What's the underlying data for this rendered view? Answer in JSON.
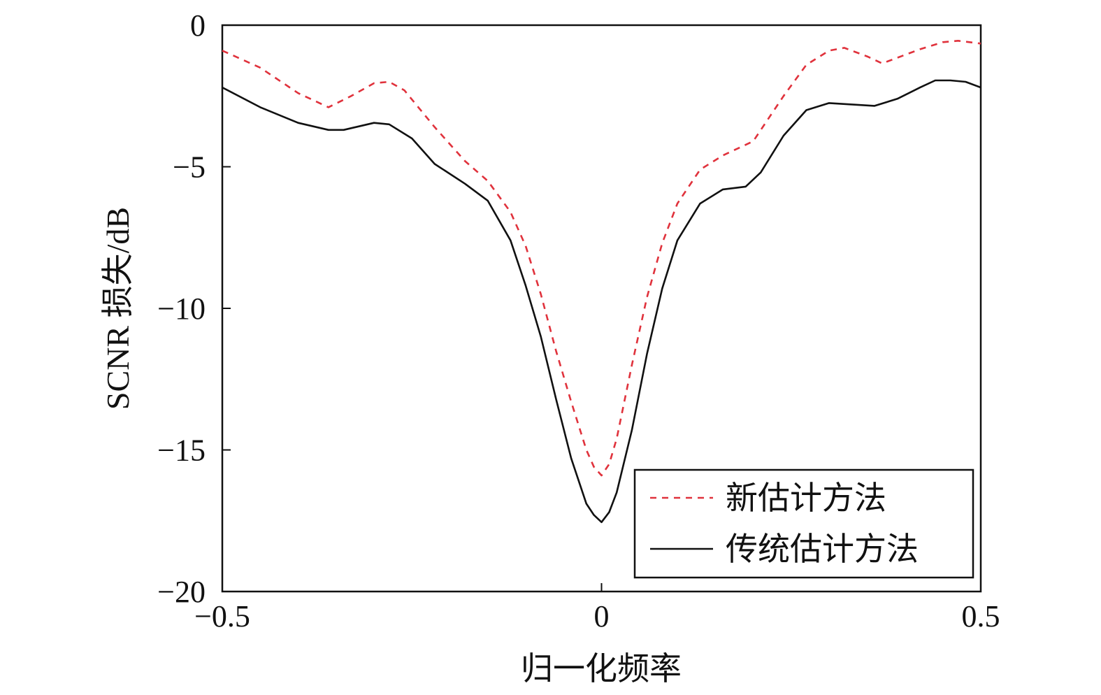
{
  "chart_data": {
    "type": "line",
    "title": "",
    "xlabel": "归一化频率",
    "ylabel": "SCNR 损失/dB",
    "xlim": [
      -0.5,
      0.5
    ],
    "ylim": [
      -20,
      0
    ],
    "xticks": [
      -0.5,
      0,
      0.5
    ],
    "xtick_labels": [
      "−0.5",
      "0",
      "0.5"
    ],
    "yticks": [
      0,
      -5,
      -10,
      -15,
      -20
    ],
    "ytick_labels": [
      "0",
      "−5",
      "−10",
      "−15",
      "−20"
    ],
    "grid": false,
    "legend_position": "bottom-right",
    "series": [
      {
        "name": "新估计方法",
        "color": "#e0323c",
        "style": "dashed",
        "x": [
          -0.5,
          -0.45,
          -0.4,
          -0.36,
          -0.33,
          -0.3,
          -0.28,
          -0.26,
          -0.22,
          -0.18,
          -0.15,
          -0.12,
          -0.1,
          -0.08,
          -0.06,
          -0.04,
          -0.02,
          -0.01,
          0.0,
          0.01,
          0.02,
          0.04,
          0.06,
          0.08,
          0.1,
          0.13,
          0.16,
          0.2,
          0.24,
          0.27,
          0.3,
          0.32,
          0.35,
          0.37,
          0.4,
          0.42,
          0.45,
          0.47,
          0.5
        ],
        "y": [
          -0.9,
          -1.5,
          -2.4,
          -2.9,
          -2.5,
          -2.05,
          -2.0,
          -2.3,
          -3.6,
          -4.8,
          -5.5,
          -6.6,
          -7.8,
          -9.5,
          -11.5,
          -13.3,
          -15.0,
          -15.6,
          -15.9,
          -15.5,
          -14.6,
          -12.0,
          -9.6,
          -7.7,
          -6.3,
          -5.1,
          -4.6,
          -4.1,
          -2.5,
          -1.4,
          -0.9,
          -0.8,
          -1.1,
          -1.35,
          -1.05,
          -0.85,
          -0.6,
          -0.55,
          -0.65
        ]
      },
      {
        "name": "传统估计方法",
        "color": "#111111",
        "style": "solid",
        "x": [
          -0.5,
          -0.45,
          -0.4,
          -0.36,
          -0.34,
          -0.3,
          -0.28,
          -0.25,
          -0.22,
          -0.18,
          -0.15,
          -0.12,
          -0.1,
          -0.08,
          -0.06,
          -0.04,
          -0.02,
          -0.01,
          0.0,
          0.01,
          0.02,
          0.04,
          0.06,
          0.08,
          0.1,
          0.13,
          0.16,
          0.19,
          0.21,
          0.24,
          0.27,
          0.3,
          0.33,
          0.36,
          0.39,
          0.42,
          0.44,
          0.46,
          0.48,
          0.5
        ],
        "y": [
          -2.2,
          -2.9,
          -3.45,
          -3.7,
          -3.7,
          -3.45,
          -3.5,
          -4.0,
          -4.9,
          -5.6,
          -6.2,
          -7.6,
          -9.2,
          -11.0,
          -13.2,
          -15.3,
          -16.9,
          -17.3,
          -17.55,
          -17.2,
          -16.5,
          -14.3,
          -11.6,
          -9.3,
          -7.6,
          -6.3,
          -5.8,
          -5.7,
          -5.2,
          -3.9,
          -3.0,
          -2.75,
          -2.8,
          -2.85,
          -2.6,
          -2.2,
          -1.95,
          -1.95,
          -2.0,
          -2.2
        ]
      }
    ]
  }
}
